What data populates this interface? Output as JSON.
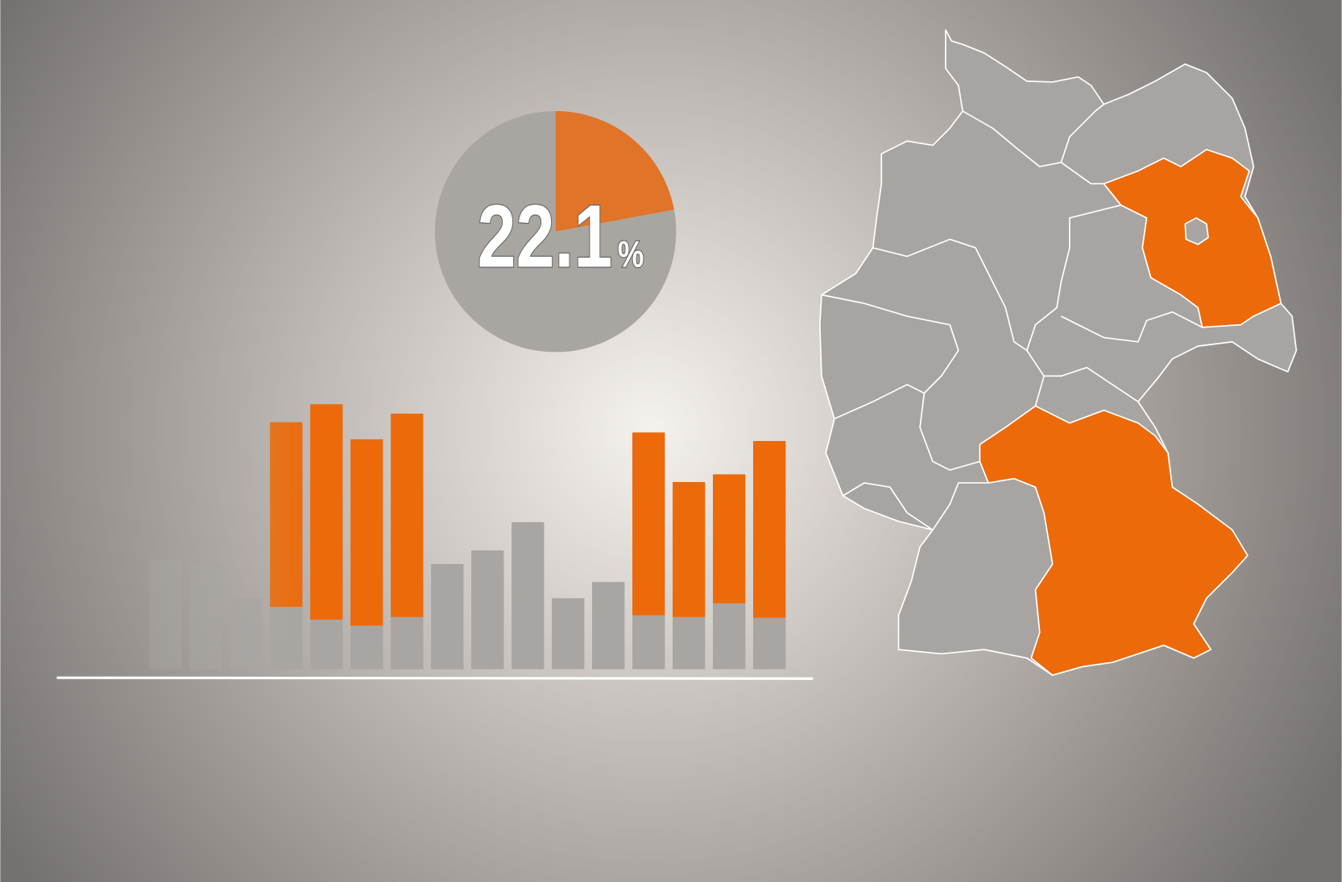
{
  "chart_data": [
    {
      "type": "pie",
      "values": [
        22.1,
        77.9
      ],
      "value_labels": [
        "22.1%",
        null
      ],
      "colors": [
        "#e07428",
        "#a9a5a1"
      ]
    },
    {
      "type": "bar",
      "stacked": true,
      "ylim": [
        0,
        320
      ],
      "series": [
        {
          "color": "#a8a5a2",
          "values": [
            128,
            123,
            83,
            73,
            58,
            51,
            61,
            123,
            139,
            172,
            83,
            102,
            63,
            61,
            77,
            60
          ]
        },
        {
          "color": "#ec6a0a",
          "values": [
            null,
            null,
            null,
            220,
            256,
            222,
            242,
            null,
            null,
            null,
            null,
            null,
            218,
            162,
            155,
            211
          ]
        }
      ]
    }
  ]
}
